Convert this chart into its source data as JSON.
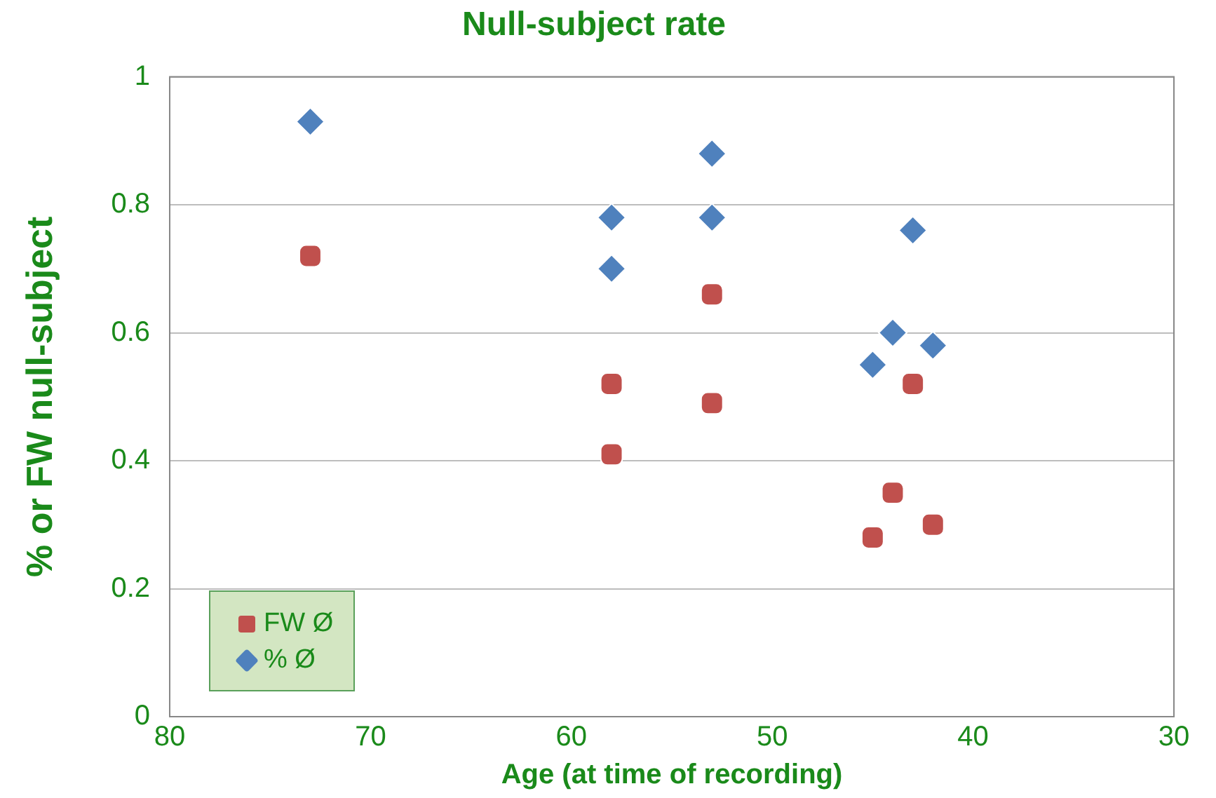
{
  "chart_data": {
    "type": "scatter",
    "title": "Null-subject rate",
    "xlabel": "Age (at time of recording)",
    "ylabel": "% or FW null-subject",
    "xlim": [
      80,
      30
    ],
    "xticks": [
      80,
      70,
      60,
      50,
      40,
      30
    ],
    "ylim": [
      0,
      1
    ],
    "yticks": [
      0,
      0.2,
      0.4,
      0.6,
      0.8,
      1
    ],
    "grid": "y",
    "legend": "bottom left",
    "series": [
      {
        "name": "FW Ø",
        "color": "#c0504d",
        "marker": "square",
        "x": [
          73,
          58,
          58,
          53,
          53,
          45,
          44,
          43,
          42
        ],
        "values": [
          0.72,
          0.52,
          0.41,
          0.66,
          0.49,
          0.28,
          0.35,
          0.52,
          0.3
        ]
      },
      {
        "name": "% Ø",
        "color": "#4f81bd",
        "marker": "diamond",
        "x": [
          73,
          58,
          58,
          53,
          53,
          45,
          44,
          43,
          42
        ],
        "values": [
          0.93,
          0.78,
          0.7,
          0.88,
          0.78,
          0.55,
          0.6,
          0.76,
          0.58
        ]
      }
    ]
  }
}
